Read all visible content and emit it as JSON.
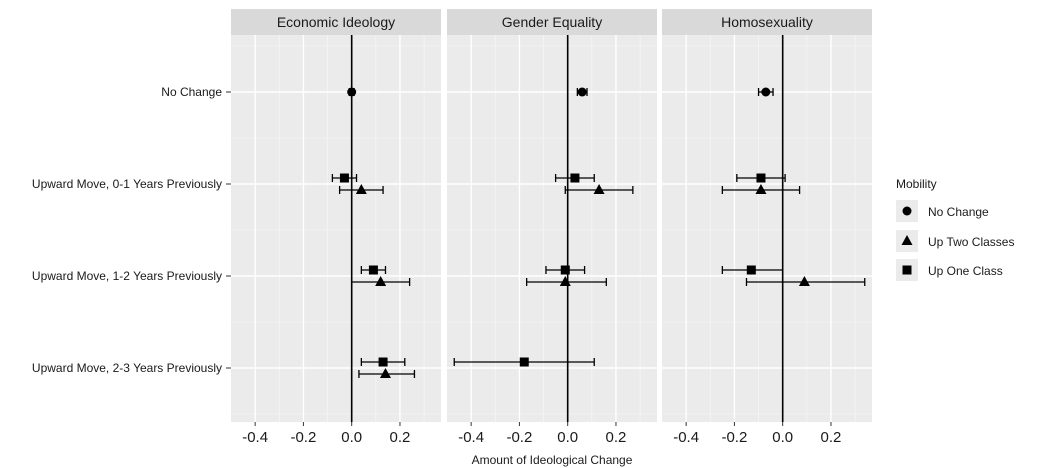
{
  "chart_data": {
    "type": "scatter",
    "xlabel": "Amount of Ideological Change",
    "ylabel": "",
    "xlim": [
      -0.5,
      0.37
    ],
    "x_ticks": [
      "-0.4",
      "-0.2",
      "0.0",
      "0.2"
    ],
    "x_tick_values": [
      -0.4,
      -0.2,
      0.0,
      0.2
    ],
    "grid": true,
    "legend_position": "right",
    "legend_title": "Mobility",
    "categories": [
      "No Change",
      "Upward Move, 0-1 Years Previously",
      "Upward Move, 1-2 Years Previously",
      "Upward Move, 2-3 Years Previously"
    ],
    "panels": [
      {
        "title": "Economic Ideology",
        "points": [
          {
            "category": "No Change",
            "series": "No Change",
            "estimate": 0.0,
            "low": -0.01,
            "high": 0.01
          },
          {
            "category": "Upward Move, 0-1 Years Previously",
            "series": "Up One Class",
            "estimate": -0.03,
            "low": -0.08,
            "high": 0.02
          },
          {
            "category": "Upward Move, 0-1 Years Previously",
            "series": "Up Two Classes",
            "estimate": 0.04,
            "low": -0.05,
            "high": 0.13
          },
          {
            "category": "Upward Move, 1-2 Years Previously",
            "series": "Up One Class",
            "estimate": 0.09,
            "low": 0.04,
            "high": 0.14
          },
          {
            "category": "Upward Move, 1-2 Years Previously",
            "series": "Up Two Classes",
            "estimate": 0.12,
            "low": 0.0,
            "high": 0.24
          },
          {
            "category": "Upward Move, 2-3 Years Previously",
            "series": "Up One Class",
            "estimate": 0.13,
            "low": 0.04,
            "high": 0.22
          },
          {
            "category": "Upward Move, 2-3 Years Previously",
            "series": "Up Two Classes",
            "estimate": 0.14,
            "low": 0.03,
            "high": 0.26
          }
        ]
      },
      {
        "title": "Gender Equality",
        "points": [
          {
            "category": "No Change",
            "series": "No Change",
            "estimate": 0.06,
            "low": 0.04,
            "high": 0.08
          },
          {
            "category": "Upward Move, 0-1 Years Previously",
            "series": "Up One Class",
            "estimate": 0.03,
            "low": -0.05,
            "high": 0.11
          },
          {
            "category": "Upward Move, 0-1 Years Previously",
            "series": "Up Two Classes",
            "estimate": 0.13,
            "low": -0.01,
            "high": 0.27
          },
          {
            "category": "Upward Move, 1-2 Years Previously",
            "series": "Up One Class",
            "estimate": -0.01,
            "low": -0.09,
            "high": 0.07
          },
          {
            "category": "Upward Move, 1-2 Years Previously",
            "series": "Up Two Classes",
            "estimate": -0.01,
            "low": -0.17,
            "high": 0.16
          },
          {
            "category": "Upward Move, 2-3 Years Previously",
            "series": "Up One Class",
            "estimate": -0.18,
            "low": -0.47,
            "high": 0.11
          }
        ]
      },
      {
        "title": "Homosexuality",
        "points": [
          {
            "category": "No Change",
            "series": "No Change",
            "estimate": -0.07,
            "low": -0.1,
            "high": -0.04
          },
          {
            "category": "Upward Move, 0-1 Years Previously",
            "series": "Up One Class",
            "estimate": -0.09,
            "low": -0.19,
            "high": 0.01
          },
          {
            "category": "Upward Move, 0-1 Years Previously",
            "series": "Up Two Classes",
            "estimate": -0.09,
            "low": -0.25,
            "high": 0.07
          },
          {
            "category": "Upward Move, 1-2 Years Previously",
            "series": "Up One Class",
            "estimate": -0.13,
            "low": -0.25,
            "high": 0.0
          },
          {
            "category": "Upward Move, 1-2 Years Previously",
            "series": "Up Two Classes",
            "estimate": 0.09,
            "low": -0.15,
            "high": 0.34
          }
        ]
      }
    ],
    "legend": [
      {
        "label": "No Change",
        "shape": "circle"
      },
      {
        "label": "Up Two Classes",
        "shape": "triangle"
      },
      {
        "label": "Up One Class",
        "shape": "square"
      }
    ],
    "colors": {
      "panel_bg": "#ebebeb",
      "strip_bg": "#d9d9d9",
      "grid": "#ffffff",
      "marks": "#000000"
    }
  }
}
